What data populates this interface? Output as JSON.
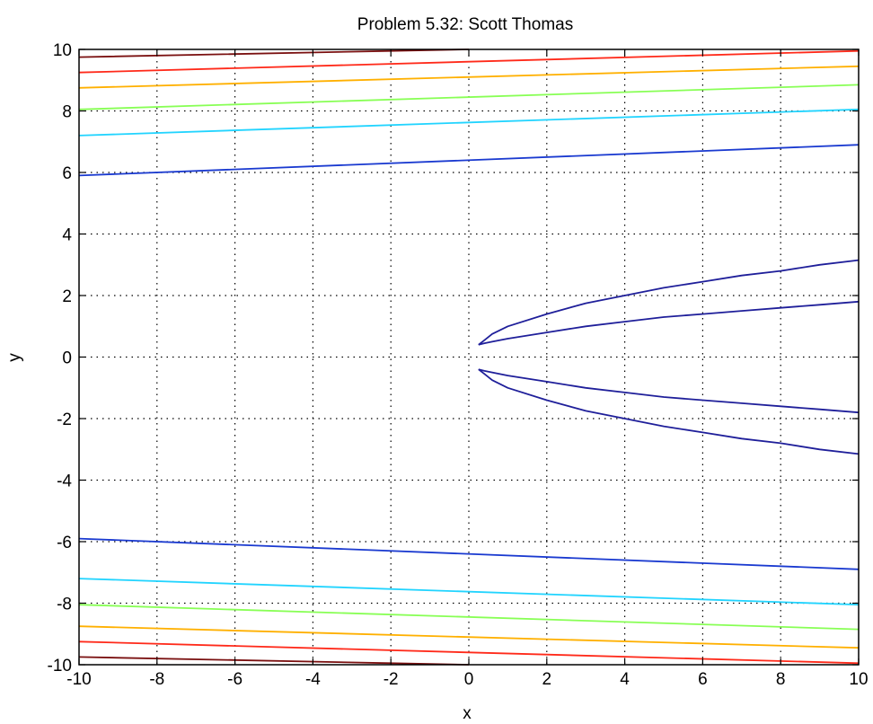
{
  "chart_data": {
    "type": "line",
    "title": "Problem 5.32: Scott Thomas",
    "xlabel": "x",
    "ylabel": "y",
    "xlim": [
      -10,
      10
    ],
    "ylim": [
      -10,
      10
    ],
    "grid": true,
    "xticks": [
      "-10",
      "-8",
      "-6",
      "-4",
      "-2",
      "0",
      "2",
      "4",
      "6",
      "8",
      "10"
    ],
    "yticks": [
      "10",
      "8",
      "6",
      "4",
      "2",
      "0",
      "-2",
      "-4",
      "-6",
      "-8",
      "-10"
    ],
    "series": [
      {
        "color": "#7a1010",
        "x": [
          -10,
          -2,
          0
        ],
        "y": [
          9.75,
          9.95,
          10.0
        ]
      },
      {
        "color": "#ff2a1a",
        "x": [
          -10,
          10
        ],
        "y": [
          9.25,
          9.95
        ]
      },
      {
        "color": "#ffb000",
        "x": [
          -10,
          10
        ],
        "y": [
          8.75,
          9.45
        ]
      },
      {
        "color": "#88ff55",
        "x": [
          -10,
          10
        ],
        "y": [
          8.05,
          8.85
        ]
      },
      {
        "color": "#22d4ff",
        "x": [
          -10,
          10
        ],
        "y": [
          7.2,
          8.05
        ]
      },
      {
        "color": "#1a3ad0",
        "x": [
          -10,
          10
        ],
        "y": [
          5.9,
          6.9
        ]
      },
      {
        "color": "#7a1010",
        "x": [
          -10,
          -2,
          0
        ],
        "y": [
          -9.75,
          -9.95,
          -10.0
        ]
      },
      {
        "color": "#ff2a1a",
        "x": [
          -10,
          10
        ],
        "y": [
          -9.25,
          -9.95
        ]
      },
      {
        "color": "#ffb000",
        "x": [
          -10,
          10
        ],
        "y": [
          -8.75,
          -9.45
        ]
      },
      {
        "color": "#88ff55",
        "x": [
          -10,
          10
        ],
        "y": [
          -8.05,
          -8.85
        ]
      },
      {
        "color": "#22d4ff",
        "x": [
          -10,
          10
        ],
        "y": [
          -7.2,
          -8.05
        ]
      },
      {
        "color": "#1a3ad0",
        "x": [
          -10,
          10
        ],
        "y": [
          -5.9,
          -6.9
        ]
      },
      {
        "color": "#1f1f9a",
        "x": [
          0.25,
          0.4,
          0.6,
          1,
          2,
          3,
          4,
          5,
          6,
          7,
          8,
          9,
          10
        ],
        "y": [
          0.4,
          0.55,
          0.75,
          1.0,
          1.4,
          1.75,
          2.0,
          2.25,
          2.45,
          2.65,
          2.8,
          3.0,
          3.15
        ]
      },
      {
        "color": "#1f1f9a",
        "x": [
          0.25,
          0.4,
          0.6,
          1,
          2,
          3,
          4,
          5,
          6,
          7,
          8,
          9,
          10
        ],
        "y": [
          0.4,
          0.45,
          0.5,
          0.6,
          0.8,
          1.0,
          1.15,
          1.3,
          1.4,
          1.5,
          1.6,
          1.7,
          1.8
        ]
      },
      {
        "color": "#1f1f9a",
        "x": [
          0.25,
          0.4,
          0.6,
          1,
          2,
          3,
          4,
          5,
          6,
          7,
          8,
          9,
          10
        ],
        "y": [
          -0.4,
          -0.45,
          -0.5,
          -0.6,
          -0.8,
          -1.0,
          -1.15,
          -1.3,
          -1.4,
          -1.5,
          -1.6,
          -1.7,
          -1.8
        ]
      },
      {
        "color": "#1f1f9a",
        "x": [
          0.25,
          0.4,
          0.6,
          1,
          2,
          3,
          4,
          5,
          6,
          7,
          8,
          9,
          10
        ],
        "y": [
          -0.4,
          -0.55,
          -0.75,
          -1.0,
          -1.4,
          -1.75,
          -2.0,
          -2.25,
          -2.45,
          -2.65,
          -2.8,
          -3.0,
          -3.15
        ]
      }
    ]
  }
}
